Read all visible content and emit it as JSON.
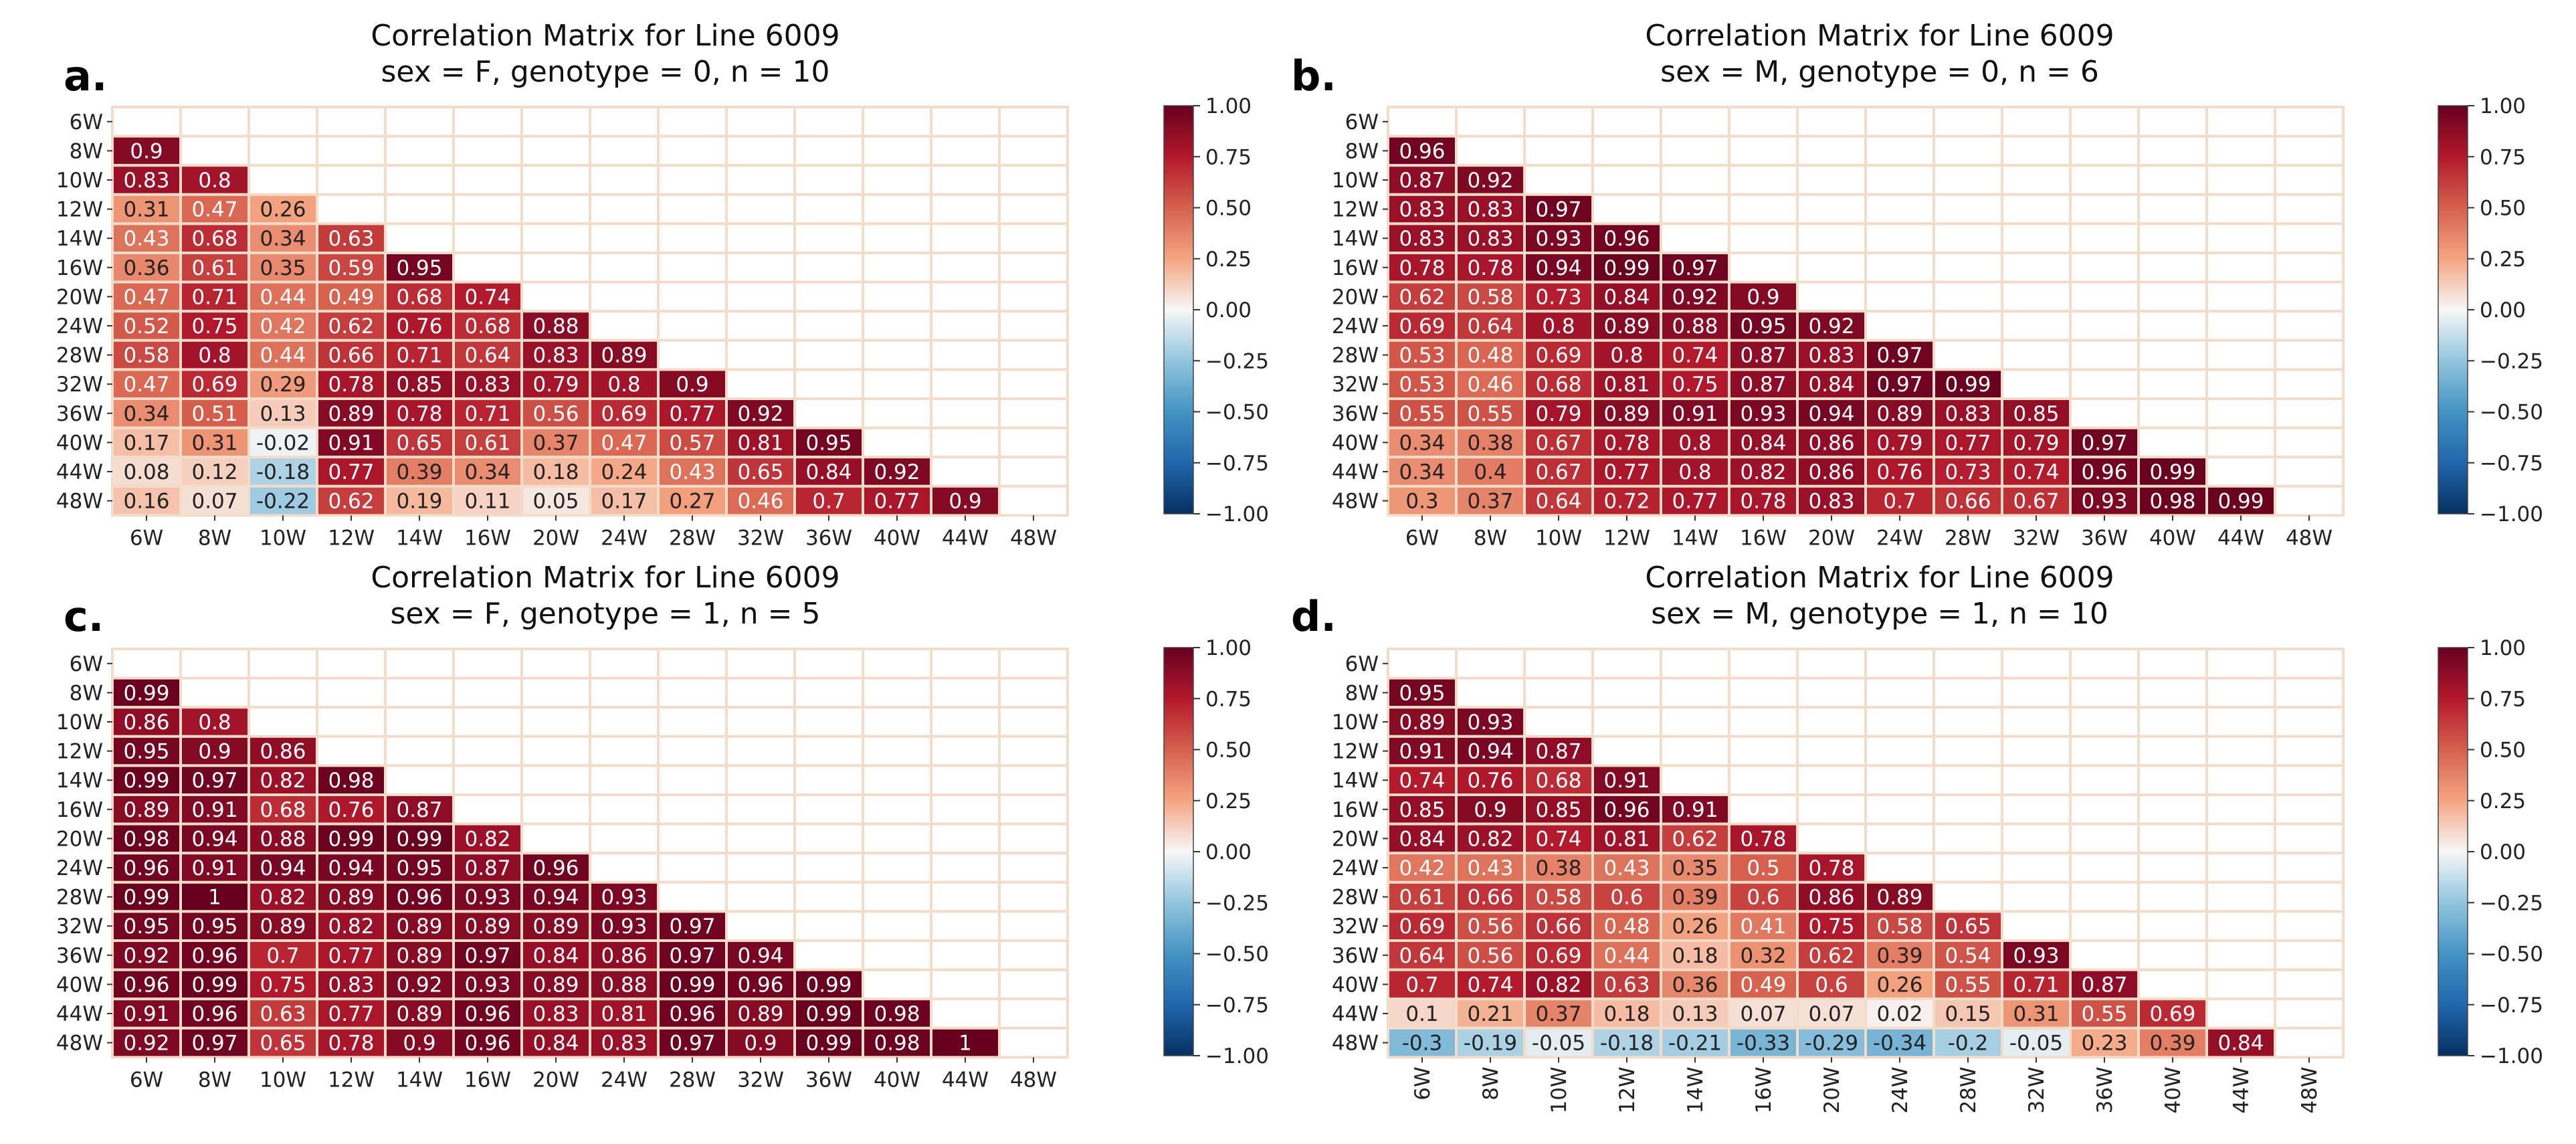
{
  "figure": {
    "colorbar_ticks": [
      1.0,
      0.75,
      0.5,
      0.25,
      0.0,
      -0.25,
      -0.5,
      -0.75,
      -1.0
    ],
    "colorbar_tick_labels": [
      "1.00",
      "0.75",
      "0.50",
      "0.25",
      "0.00",
      "−0.25",
      "−0.50",
      "−0.75",
      "−1.00"
    ],
    "cmap": "RdBu_r",
    "cell_border_color": "#f3ddc9"
  },
  "chart_data": [
    {
      "panel_label": "a.",
      "type": "heatmap",
      "title": "Correlation Matrix for Line 6009",
      "subtitle": "sex = F, genotype = 0, n = 10",
      "labels": [
        "6W",
        "8W",
        "10W",
        "12W",
        "14W",
        "16W",
        "20W",
        "24W",
        "28W",
        "32W",
        "36W",
        "40W",
        "44W",
        "48W"
      ],
      "x_tick_rotation": 0,
      "vmin": -1,
      "vmax": 1,
      "lower_triangle": [
        [
          0.9
        ],
        [
          0.83,
          0.8
        ],
        [
          0.31,
          0.47,
          0.26
        ],
        [
          0.43,
          0.68,
          0.34,
          0.63
        ],
        [
          0.36,
          0.61,
          0.35,
          0.59,
          0.95
        ],
        [
          0.47,
          0.71,
          0.44,
          0.49,
          0.68,
          0.74
        ],
        [
          0.52,
          0.75,
          0.42,
          0.62,
          0.76,
          0.68,
          0.88
        ],
        [
          0.58,
          0.8,
          0.44,
          0.66,
          0.71,
          0.64,
          0.83,
          0.89
        ],
        [
          0.47,
          0.69,
          0.29,
          0.78,
          0.85,
          0.83,
          0.79,
          0.8,
          0.9
        ],
        [
          0.34,
          0.51,
          0.13,
          0.89,
          0.78,
          0.71,
          0.56,
          0.69,
          0.77,
          0.92
        ],
        [
          0.17,
          0.31,
          -0.02,
          0.91,
          0.65,
          0.61,
          0.37,
          0.47,
          0.57,
          0.81,
          0.95
        ],
        [
          0.08,
          0.12,
          -0.18,
          0.77,
          0.39,
          0.34,
          0.18,
          0.24,
          0.43,
          0.65,
          0.84,
          0.92
        ],
        [
          0.16,
          0.07,
          -0.22,
          0.62,
          0.19,
          0.11,
          0.05,
          0.17,
          0.27,
          0.46,
          0.7,
          0.77,
          0.9
        ]
      ]
    },
    {
      "panel_label": "b.",
      "type": "heatmap",
      "title": "Correlation Matrix for Line 6009",
      "subtitle": "sex = M, genotype = 0, n = 6",
      "labels": [
        "6W",
        "8W",
        "10W",
        "12W",
        "14W",
        "16W",
        "20W",
        "24W",
        "28W",
        "32W",
        "36W",
        "40W",
        "44W",
        "48W"
      ],
      "x_tick_rotation": 0,
      "vmin": -1,
      "vmax": 1,
      "lower_triangle": [
        [
          0.96
        ],
        [
          0.87,
          0.92
        ],
        [
          0.83,
          0.83,
          0.97
        ],
        [
          0.83,
          0.83,
          0.93,
          0.96
        ],
        [
          0.78,
          0.78,
          0.94,
          0.99,
          0.97
        ],
        [
          0.62,
          0.58,
          0.73,
          0.84,
          0.92,
          0.9
        ],
        [
          0.69,
          0.64,
          0.8,
          0.89,
          0.88,
          0.95,
          0.92
        ],
        [
          0.53,
          0.48,
          0.69,
          0.8,
          0.74,
          0.87,
          0.83,
          0.97
        ],
        [
          0.53,
          0.46,
          0.68,
          0.81,
          0.75,
          0.87,
          0.84,
          0.97,
          0.99
        ],
        [
          0.55,
          0.55,
          0.79,
          0.89,
          0.91,
          0.93,
          0.94,
          0.89,
          0.83,
          0.85
        ],
        [
          0.34,
          0.38,
          0.67,
          0.78,
          0.8,
          0.84,
          0.86,
          0.79,
          0.77,
          0.79,
          0.97
        ],
        [
          0.34,
          0.4,
          0.67,
          0.77,
          0.8,
          0.82,
          0.86,
          0.76,
          0.73,
          0.74,
          0.96,
          0.99
        ],
        [
          0.3,
          0.37,
          0.64,
          0.72,
          0.77,
          0.78,
          0.83,
          0.7,
          0.66,
          0.67,
          0.93,
          0.98,
          0.99
        ]
      ]
    },
    {
      "panel_label": "c.",
      "type": "heatmap",
      "title": "Correlation Matrix for Line 6009",
      "subtitle": "sex = F, genotype = 1, n = 5",
      "labels": [
        "6W",
        "8W",
        "10W",
        "12W",
        "14W",
        "16W",
        "20W",
        "24W",
        "28W",
        "32W",
        "36W",
        "40W",
        "44W",
        "48W"
      ],
      "x_tick_rotation": 0,
      "vmin": -1,
      "vmax": 1,
      "lower_triangle": [
        [
          0.99
        ],
        [
          0.86,
          0.8
        ],
        [
          0.95,
          0.9,
          0.86
        ],
        [
          0.99,
          0.97,
          0.82,
          0.98
        ],
        [
          0.89,
          0.91,
          0.68,
          0.76,
          0.87
        ],
        [
          0.98,
          0.94,
          0.88,
          0.99,
          0.99,
          0.82
        ],
        [
          0.96,
          0.91,
          0.94,
          0.94,
          0.95,
          0.87,
          0.96
        ],
        [
          0.99,
          1,
          0.82,
          0.89,
          0.96,
          0.93,
          0.94,
          0.93
        ],
        [
          0.95,
          0.95,
          0.89,
          0.82,
          0.89,
          0.89,
          0.89,
          0.93,
          0.97
        ],
        [
          0.92,
          0.96,
          0.7,
          0.77,
          0.89,
          0.97,
          0.84,
          0.86,
          0.97,
          0.94
        ],
        [
          0.96,
          0.99,
          0.75,
          0.83,
          0.92,
          0.93,
          0.89,
          0.88,
          0.99,
          0.96,
          0.99
        ],
        [
          0.91,
          0.96,
          0.63,
          0.77,
          0.89,
          0.96,
          0.83,
          0.81,
          0.96,
          0.89,
          0.99,
          0.98
        ],
        [
          0.92,
          0.97,
          0.65,
          0.78,
          0.9,
          0.96,
          0.84,
          0.83,
          0.97,
          0.9,
          0.99,
          0.98,
          1
        ]
      ]
    },
    {
      "panel_label": "d.",
      "type": "heatmap",
      "title": "Correlation Matrix for Line 6009",
      "subtitle": "sex = M, genotype = 1, n = 10",
      "labels": [
        "6W",
        "8W",
        "10W",
        "12W",
        "14W",
        "16W",
        "20W",
        "24W",
        "28W",
        "32W",
        "36W",
        "40W",
        "44W",
        "48W"
      ],
      "x_tick_rotation": 90,
      "vmin": -1,
      "vmax": 1,
      "lower_triangle": [
        [
          0.95
        ],
        [
          0.89,
          0.93
        ],
        [
          0.91,
          0.94,
          0.87
        ],
        [
          0.74,
          0.76,
          0.68,
          0.91
        ],
        [
          0.85,
          0.9,
          0.85,
          0.96,
          0.91
        ],
        [
          0.84,
          0.82,
          0.74,
          0.81,
          0.62,
          0.78
        ],
        [
          0.42,
          0.43,
          0.38,
          0.43,
          0.35,
          0.5,
          0.78
        ],
        [
          0.61,
          0.66,
          0.58,
          0.6,
          0.39,
          0.6,
          0.86,
          0.89
        ],
        [
          0.69,
          0.56,
          0.66,
          0.48,
          0.26,
          0.41,
          0.75,
          0.58,
          0.65
        ],
        [
          0.64,
          0.56,
          0.69,
          0.44,
          0.18,
          0.32,
          0.62,
          0.39,
          0.54,
          0.93
        ],
        [
          0.7,
          0.74,
          0.82,
          0.63,
          0.36,
          0.49,
          0.6,
          0.26,
          0.55,
          0.71,
          0.87
        ],
        [
          0.1,
          0.21,
          0.37,
          0.18,
          0.13,
          0.07,
          0.07,
          0.02,
          0.15,
          0.31,
          0.55,
          0.69
        ],
        [
          -0.3,
          -0.19,
          -0.05,
          -0.18,
          -0.21,
          -0.33,
          -0.29,
          -0.34,
          -0.2,
          -0.05,
          0.23,
          0.39,
          0.84
        ]
      ]
    }
  ]
}
